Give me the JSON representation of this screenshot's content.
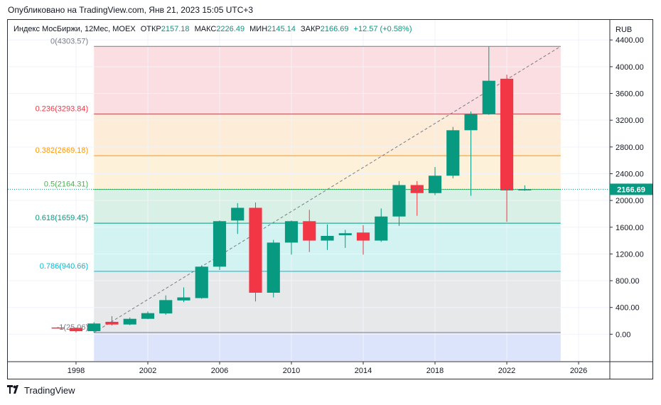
{
  "published": "Опубликовано на TradingView.com, Янв 21, 2023 15:05 UTC+3",
  "legend": {
    "symbol": "Индекс МосБиржи, 12Мес, MOEX",
    "open_label": "ОТКР",
    "open": "2157.18",
    "high_label": "МАКС",
    "high": "2226.49",
    "low_label": "МИН",
    "low": "2145.14",
    "close_label": "ЗАКР",
    "close": "2166.69",
    "change": "+12.57 (+0.58%)"
  },
  "currency": "RUB",
  "price_tag": "2166.69",
  "footer_brand": "TradingView",
  "chart_data": {
    "type": "candlestick",
    "x_axis_ticks": [
      "1998",
      "2002",
      "2006",
      "2010",
      "2014",
      "2018",
      "2022",
      "2026"
    ],
    "y_axis_ticks": [
      "0.00",
      "400.00",
      "800.00",
      "1200.00",
      "1600.00",
      "2000.00",
      "2400.00",
      "2800.00",
      "3200.00",
      "3600.00",
      "4000.00",
      "4400.00"
    ],
    "ylim": [
      -400,
      4700
    ],
    "xlim": [
      1994.2,
      2027.7
    ],
    "fib_levels": [
      {
        "label": "0(4303.57)",
        "price": 4303.57,
        "line": "#787b86",
        "fill": "#fad8dc",
        "text": "#787b86"
      },
      {
        "label": "0.236(3293.84)",
        "price": 3293.84,
        "line": "#c24552",
        "fill": "#fde9d0",
        "text": "#f23645"
      },
      {
        "label": "0.382(2669.18)",
        "price": 2669.18,
        "line": "#ff9800",
        "fill": "#fdf0d2",
        "text": "#ff9800"
      },
      {
        "label": "0.5(2164.31)",
        "price": 2164.31,
        "line": "#4caf50",
        "fill": "#d2ede2",
        "text": "#4caf50"
      },
      {
        "label": "0.618(1659.45)",
        "price": 1659.45,
        "line": "#089981",
        "fill": "#cbf0f0",
        "text": "#089981"
      },
      {
        "label": "0.786(940.66)",
        "price": 940.66,
        "line": "#00bcd4",
        "fill": "#e3e4e6",
        "text": "#00bcd4"
      },
      {
        "label": "1(25.06)",
        "price": 25.06,
        "line": "#787b86",
        "fill": "#d6dffb",
        "text": "#787b86"
      }
    ],
    "fib_span": {
      "start": 1999,
      "end": 2025
    },
    "fib_bottom_fill_to": -400,
    "trend_line": {
      "from": {
        "x": 1999,
        "y": 25.06
      },
      "to": {
        "x": 2025,
        "y": 4303.57
      }
    },
    "candles": [
      {
        "x": 1997,
        "o": 100,
        "h": 110,
        "l": 85,
        "c": 95
      },
      {
        "x": 1998,
        "o": 95,
        "h": 100,
        "l": 25,
        "c": 45
      },
      {
        "x": 1999,
        "o": 45,
        "h": 180,
        "l": 25,
        "c": 160
      },
      {
        "x": 2000,
        "o": 185,
        "h": 270,
        "l": 130,
        "c": 145
      },
      {
        "x": 2001,
        "o": 145,
        "h": 250,
        "l": 135,
        "c": 230
      },
      {
        "x": 2002,
        "o": 230,
        "h": 340,
        "l": 225,
        "c": 315
      },
      {
        "x": 2003,
        "o": 310,
        "h": 580,
        "l": 290,
        "c": 510
      },
      {
        "x": 2004,
        "o": 505,
        "h": 700,
        "l": 480,
        "c": 550
      },
      {
        "x": 2005,
        "o": 540,
        "h": 1030,
        "l": 530,
        "c": 1010
      },
      {
        "x": 2006,
        "o": 1010,
        "h": 1700,
        "l": 960,
        "c": 1690
      },
      {
        "x": 2007,
        "o": 1700,
        "h": 1960,
        "l": 1500,
        "c": 1890
      },
      {
        "x": 2008,
        "o": 1890,
        "h": 1970,
        "l": 490,
        "c": 620
      },
      {
        "x": 2009,
        "o": 620,
        "h": 1410,
        "l": 550,
        "c": 1370
      },
      {
        "x": 2010,
        "o": 1370,
        "h": 1700,
        "l": 1190,
        "c": 1690
      },
      {
        "x": 2011,
        "o": 1690,
        "h": 1860,
        "l": 1230,
        "c": 1400
      },
      {
        "x": 2012,
        "o": 1400,
        "h": 1640,
        "l": 1260,
        "c": 1470
      },
      {
        "x": 2013,
        "o": 1480,
        "h": 1560,
        "l": 1290,
        "c": 1510
      },
      {
        "x": 2014,
        "o": 1520,
        "h": 1630,
        "l": 1190,
        "c": 1400
      },
      {
        "x": 2015,
        "o": 1400,
        "h": 1880,
        "l": 1380,
        "c": 1760
      },
      {
        "x": 2016,
        "o": 1760,
        "h": 2290,
        "l": 1620,
        "c": 2230
      },
      {
        "x": 2017,
        "o": 2230,
        "h": 2290,
        "l": 1770,
        "c": 2110
      },
      {
        "x": 2018,
        "o": 2110,
        "h": 2500,
        "l": 2080,
        "c": 2370
      },
      {
        "x": 2019,
        "o": 2370,
        "h": 3100,
        "l": 2330,
        "c": 3050
      },
      {
        "x": 2020,
        "o": 3050,
        "h": 3330,
        "l": 2070,
        "c": 3290
      },
      {
        "x": 2021,
        "o": 3290,
        "h": 4300,
        "l": 3280,
        "c": 3790
      },
      {
        "x": 2022,
        "o": 3820,
        "h": 3880,
        "l": 1680,
        "c": 2150
      },
      {
        "x": 2023,
        "o": 2157.18,
        "h": 2226.49,
        "l": 2145.14,
        "c": 2166.69
      }
    ],
    "colors": {
      "up": "#089981",
      "down": "#f23645",
      "last_price": "#089981"
    }
  }
}
